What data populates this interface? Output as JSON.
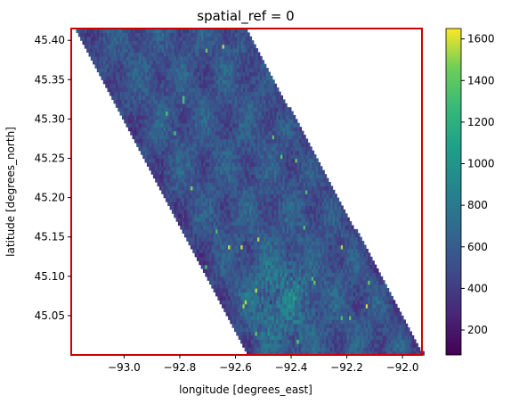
{
  "chart_data": {
    "type": "heatmap",
    "title": "spatial_ref = 0",
    "xlabel": "longitude [degrees_east]",
    "ylabel": "latitude [degrees_north]",
    "xlim": [
      -93.19,
      -91.93
    ],
    "ylim": [
      45.0,
      45.415
    ],
    "xticks": [
      -93.0,
      -92.8,
      -92.6,
      -92.4,
      -92.2,
      -92.0
    ],
    "xtick_labels": [
      "−93.0",
      "−92.8",
      "−92.6",
      "−92.4",
      "−92.2",
      "−92.0"
    ],
    "yticks": [
      45.05,
      45.1,
      45.15,
      45.2,
      45.25,
      45.3,
      45.35,
      45.4
    ],
    "ytick_labels": [
      "45.05",
      "45.10",
      "45.15",
      "45.20",
      "45.25",
      "45.30",
      "45.35",
      "45.40"
    ],
    "colorbar": {
      "colormap": "viridis",
      "range": [
        80,
        1650
      ],
      "ticks": [
        200,
        400,
        600,
        800,
        1000,
        1200,
        1400,
        1600
      ],
      "tick_labels": [
        "200",
        "400",
        "600",
        "800",
        "1000",
        "1200",
        "1400",
        "1600"
      ]
    },
    "data_footprint": {
      "corners_lon_lat": [
        [
          -93.18,
          45.415
        ],
        [
          -92.57,
          45.415
        ],
        [
          -91.93,
          45.0
        ],
        [
          -92.56,
          45.0
        ]
      ],
      "typical_value": 550,
      "brighter_region_center": [
        -92.45,
        45.07
      ]
    },
    "frame_color": "#cc0000",
    "grid": false
  }
}
